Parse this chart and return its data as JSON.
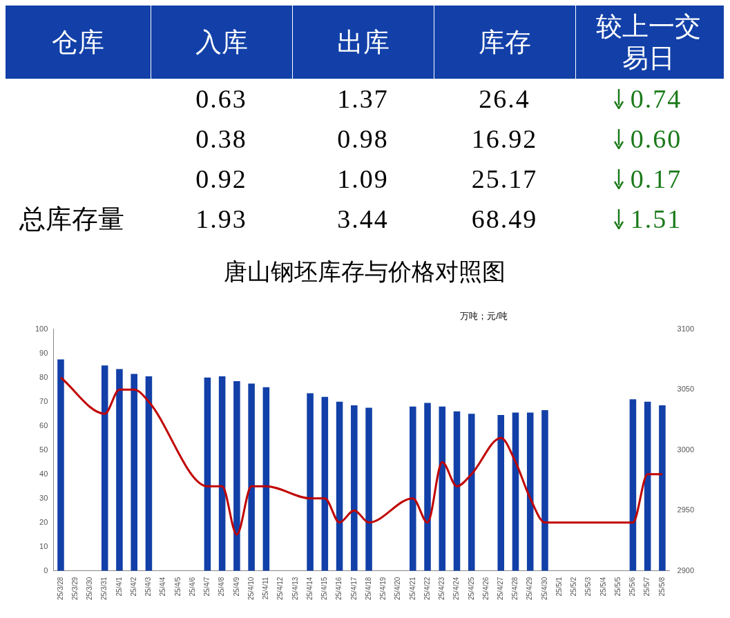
{
  "chart_data": [
    {
      "type": "other",
      "categories": [
        "仓库",
        "入库",
        "出库",
        "库存",
        "较上一交易日"
      ],
      "y_categories": [
        null,
        null,
        null,
        "总库存量"
      ],
      "cell_labels": [
        [
          "0.63",
          "1.37",
          "26.4",
          "0.74"
        ],
        [
          "0.38",
          "0.98",
          "16.92",
          "0.60"
        ],
        [
          "0.92",
          "1.09",
          "25.17",
          "0.17"
        ],
        [
          "1.93",
          "3.44",
          "68.49",
          "1.51"
        ]
      ]
    },
    {
      "type": "bar",
      "title": "唐山钢坯库存与价格对照图",
      "annotations": [
        "万吨；元/吨"
      ],
      "categories": [
        "25/3/28",
        "25/3/29",
        "25/3/30",
        "25/3/31",
        "25/4/1",
        "25/4/2",
        "25/4/3",
        "25/4/4",
        "25/4/5",
        "25/4/6",
        "25/4/7",
        "25/4/8",
        "25/4/9",
        "25/4/10",
        "25/4/11",
        "25/4/12",
        "25/4/13",
        "25/4/14",
        "25/4/15",
        "25/4/16",
        "25/4/17",
        "25/4/18",
        "25/4/19",
        "25/4/20",
        "25/4/21",
        "25/4/22",
        "25/4/23",
        "25/4/24",
        "25/4/25",
        "25/4/26",
        "25/4/27",
        "25/4/28",
        "25/4/29",
        "25/4/30",
        "25/5/1",
        "25/5/2",
        "25/5/3",
        "25/5/4",
        "25/5/5",
        "25/5/6",
        "25/5/7",
        "25/5/8"
      ],
      "series": [
        {
          "type": "bar",
          "color": "#1240a8",
          "values": [
            87.5,
            null,
            null,
            85,
            83.5,
            81.5,
            80.5,
            null,
            null,
            null,
            80,
            80.5,
            78.5,
            77.5,
            76,
            null,
            null,
            73.5,
            72,
            70,
            68.5,
            67.5,
            null,
            null,
            68,
            69.5,
            68,
            66,
            65,
            null,
            64.5,
            65.5,
            65.5,
            66.5,
            null,
            null,
            null,
            null,
            null,
            71,
            70,
            68.5
          ]
        },
        {
          "type": "line",
          "axis": "y2",
          "color": "#c00000",
          "values": [
            3060,
            null,
            null,
            3030,
            3050,
            3050,
            3040,
            null,
            null,
            null,
            2970,
            2970,
            2930,
            2970,
            2970,
            null,
            null,
            2960,
            2960,
            2940,
            2950,
            2940,
            null,
            null,
            2960,
            2940,
            2990,
            2970,
            2980,
            null,
            3010,
            2990,
            2960,
            2940,
            null,
            null,
            null,
            null,
            null,
            2940,
            2980,
            2980
          ]
        }
      ],
      "ylim": [
        0,
        100
      ],
      "yticks": [
        0,
        10,
        20,
        30,
        40,
        50,
        60,
        70,
        80,
        90,
        100
      ],
      "y2lim": [
        2900,
        3100
      ],
      "y2ticks": [
        2900,
        2950,
        3000,
        3050,
        3100
      ],
      "grid": false,
      "legend": false,
      "marker": "none",
      "line_style": "solid"
    }
  ]
}
